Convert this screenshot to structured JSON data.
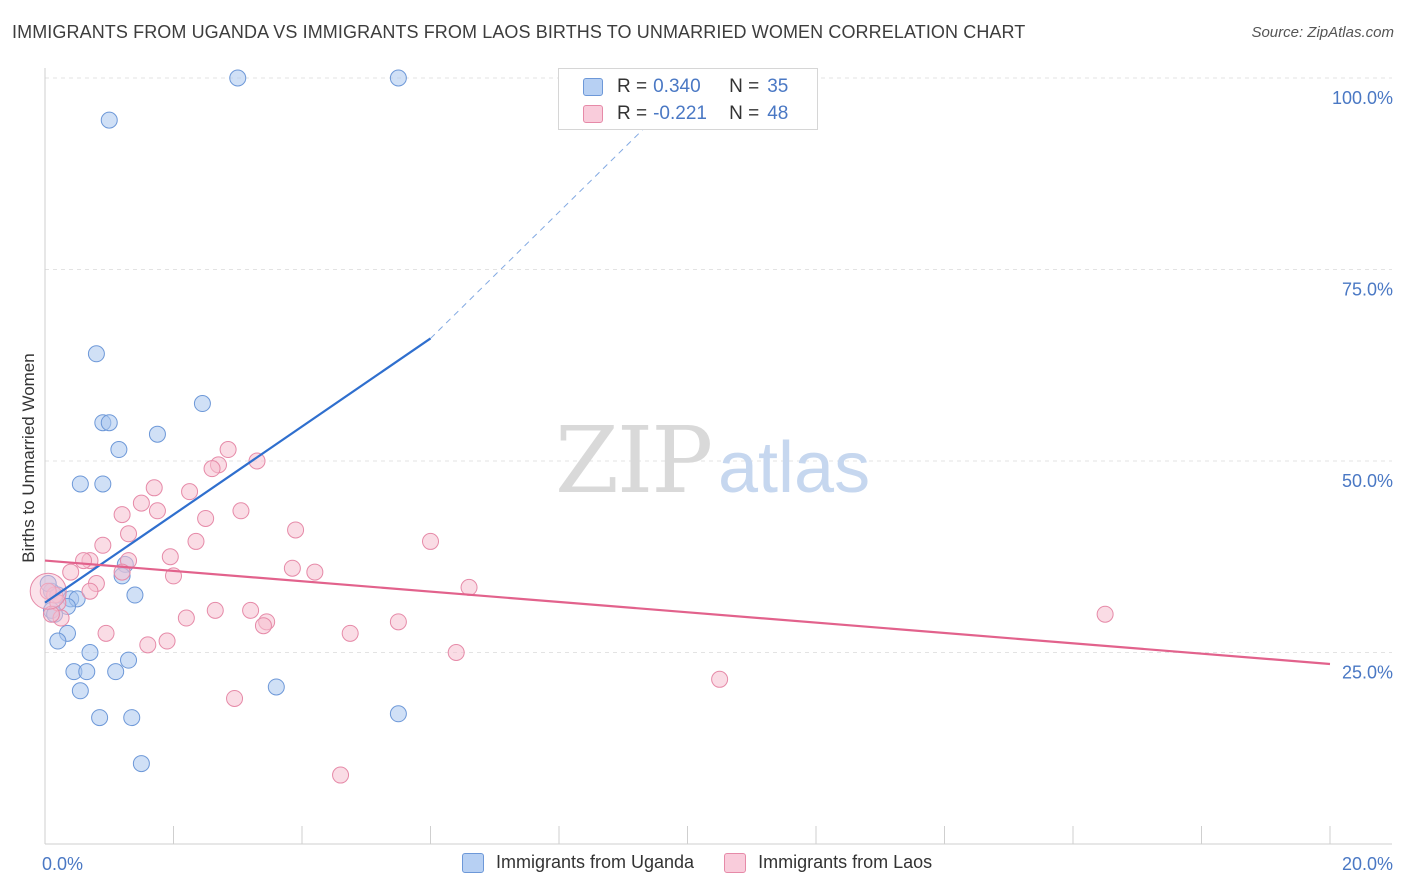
{
  "chart_data": {
    "type": "scatter",
    "title": "IMMIGRANTS FROM UGANDA VS IMMIGRANTS FROM LAOS BIRTHS TO UNMARRIED WOMEN CORRELATION CHART",
    "source": "Source: ZipAtlas.com",
    "ylabel": "Births to Unmarried Women",
    "xlim": [
      0,
      20
    ],
    "ylim": [
      0,
      100
    ],
    "x_tick_labels": [
      "0.0%",
      "20.0%"
    ],
    "y_tick_labels": [
      "100.0%",
      "75.0%",
      "50.0%",
      "25.0%"
    ],
    "y_ticks": [
      100,
      75,
      50,
      25
    ],
    "watermark": "ZIPatlas",
    "legend": [
      {
        "r_label": "R =",
        "r_value": "0.340",
        "n_label": "N =",
        "n_value": "35"
      },
      {
        "r_label": "R =",
        "r_value": "-0.221",
        "n_label": "N =",
        "n_value": "48"
      }
    ],
    "series": [
      {
        "name": "Immigrants from Uganda",
        "color": "#a9c6ee",
        "stroke": "#6d98d8",
        "line_color": "#2f6fce",
        "trend": {
          "x0": 0,
          "y0": 31.5,
          "x1": 6.0,
          "y1": 66,
          "dash_to_x": 10.0,
          "dash_to_y": 99
        },
        "points": [
          [
            3.0,
            100
          ],
          [
            5.5,
            100
          ],
          [
            1.0,
            94.5
          ],
          [
            0.8,
            64
          ],
          [
            2.45,
            57.5
          ],
          [
            0.9,
            55
          ],
          [
            1.0,
            55
          ],
          [
            1.75,
            53.5
          ],
          [
            1.15,
            51.5
          ],
          [
            0.55,
            47
          ],
          [
            0.9,
            47
          ],
          [
            0.1,
            33
          ],
          [
            0.2,
            32.5
          ],
          [
            0.4,
            32
          ],
          [
            0.5,
            32
          ],
          [
            0.35,
            31
          ],
          [
            0.1,
            30.5
          ],
          [
            0.15,
            30
          ],
          [
            1.25,
            36.5
          ],
          [
            1.2,
            35
          ],
          [
            1.4,
            32.5
          ],
          [
            0.35,
            27.5
          ],
          [
            0.2,
            26.5
          ],
          [
            0.7,
            25
          ],
          [
            0.45,
            22.5
          ],
          [
            0.65,
            22.5
          ],
          [
            1.1,
            22.5
          ],
          [
            1.3,
            24
          ],
          [
            3.6,
            20.5
          ],
          [
            0.55,
            20
          ],
          [
            0.85,
            16.5
          ],
          [
            1.35,
            16.5
          ],
          [
            5.5,
            17
          ],
          [
            1.5,
            10.5
          ],
          [
            0.05,
            34
          ]
        ]
      },
      {
        "name": "Immigrants from Laos",
        "color": "#f6bfd0",
        "stroke": "#e68aa8",
        "line_color": "#e2628c",
        "trend": {
          "x0": 0,
          "y0": 37,
          "x1": 20,
          "y1": 23.5
        },
        "points": [
          [
            2.85,
            51.5
          ],
          [
            3.3,
            50
          ],
          [
            2.7,
            49.5
          ],
          [
            2.6,
            49
          ],
          [
            1.7,
            46.5
          ],
          [
            2.25,
            46
          ],
          [
            1.5,
            44.5
          ],
          [
            1.75,
            43.5
          ],
          [
            3.05,
            43.5
          ],
          [
            1.2,
            43
          ],
          [
            2.5,
            42.5
          ],
          [
            1.3,
            40.5
          ],
          [
            3.9,
            41
          ],
          [
            6.0,
            39.5
          ],
          [
            0.9,
            39
          ],
          [
            2.35,
            39.5
          ],
          [
            0.7,
            37
          ],
          [
            1.3,
            37
          ],
          [
            1.95,
            37.5
          ],
          [
            0.6,
            37
          ],
          [
            3.85,
            36
          ],
          [
            4.2,
            35.5
          ],
          [
            0.4,
            35.5
          ],
          [
            1.2,
            35.5
          ],
          [
            2.0,
            35
          ],
          [
            0.8,
            34
          ],
          [
            6.6,
            33.5
          ],
          [
            0.7,
            33
          ],
          [
            0.15,
            32.5
          ],
          [
            0.2,
            31.5
          ],
          [
            2.65,
            30.5
          ],
          [
            3.2,
            30.5
          ],
          [
            16.5,
            30
          ],
          [
            2.2,
            29.5
          ],
          [
            3.45,
            29
          ],
          [
            5.5,
            29
          ],
          [
            3.4,
            28.5
          ],
          [
            0.25,
            29.5
          ],
          [
            0.95,
            27.5
          ],
          [
            4.75,
            27.5
          ],
          [
            1.9,
            26.5
          ],
          [
            1.6,
            26
          ],
          [
            6.4,
            25
          ],
          [
            10.5,
            21.5
          ],
          [
            2.95,
            19
          ],
          [
            4.6,
            9
          ],
          [
            0.05,
            33
          ],
          [
            0.1,
            30
          ]
        ]
      }
    ]
  }
}
